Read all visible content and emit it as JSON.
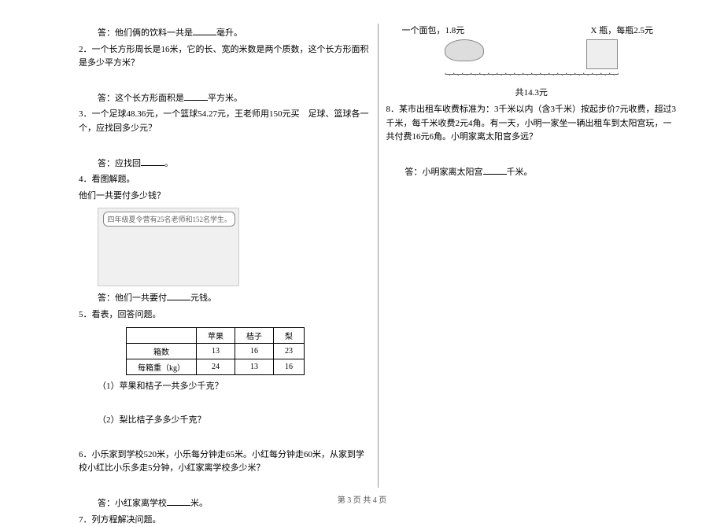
{
  "left": {
    "a1": "答：他们俩的饮料一共是",
    "a1b": "毫升。",
    "q2": "2．一个长方形周长是16米，它的长、宽的米数是两个质数，这个长方形面积是多少平方米？",
    "a2": "答：这个长方形面积是",
    "a2b": "平方米。",
    "q3": "3．一个足球48.36元，一个篮球54.27元，王老师用150元买　足球、篮球各一个，应找回多少元？",
    "a3": "答：应找回",
    "a3b": "。",
    "q4a": "4．看图解题。",
    "q4b": "他们一共要付多少钱？",
    "img_bubble": "四年级夏令营有25名老师和152名学生。",
    "a4": "答：他们一共要付",
    "a4b": "元钱。",
    "q5": "5．看表，回答问题。",
    "table": {
      "headers": [
        "",
        "苹果",
        "桔子",
        "梨"
      ],
      "rows": [
        [
          "箱数",
          "13",
          "16",
          "23"
        ],
        [
          "每箱重（kg）",
          "24",
          "13",
          "16"
        ]
      ]
    },
    "q5_1": "（1）苹果和桔子一共多少千克？",
    "q5_2": "（2）梨比桔子多多少千克？",
    "q6": "6．小乐家到学校520米，小乐每分钟走65米。小红每分钟走60米，从家到学校小红比小乐多走5分钟，小红家离学校多少米？",
    "a6": "答：小红家离学校",
    "a6b": "米。",
    "q7": "7．列方程解决问题。"
  },
  "right": {
    "bread_label": "一个面包，1.8元",
    "bottle_label": "X 瓶，每瓶2.5元",
    "total": "共14.3元",
    "q8": "8．某市出租车收费标准为：3千米以内（含3千米）按起步价7元收费，超过3千米，每千米收费2元4角。有一天，小明一家坐一辆出租车到太阳宫玩，一共付费16元6角。小明家离太阳宫多远？",
    "a8": "答：小明家离太阳宫",
    "a8b": "千米。"
  },
  "footer": "第 3 页  共 4 页"
}
